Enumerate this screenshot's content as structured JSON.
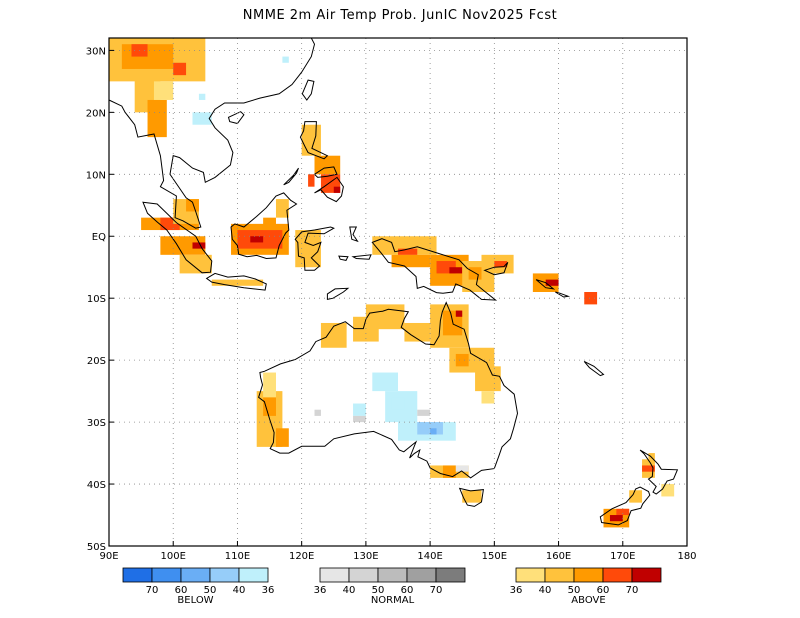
{
  "title": "NMME 2m Air Temp Prob. JunIC  Nov2025 Fcst",
  "map": {
    "lon_range": [
      90,
      180
    ],
    "lat_range": [
      -50,
      32
    ],
    "lon_ticks": [
      "90E",
      "100E",
      "110E",
      "120E",
      "130E",
      "140E",
      "150E",
      "160E",
      "170E",
      "180"
    ],
    "lat_ticks": [
      "30N",
      "20N",
      "10N",
      "EQ",
      "10S",
      "20S",
      "30S",
      "40S",
      "50S"
    ],
    "gridlines": "dotted"
  },
  "legend": {
    "below": {
      "title": "BELOW",
      "colors": [
        "#1f6fe6",
        "#3f8ff0",
        "#6aaef5",
        "#96cdf9",
        "#bff0fb"
      ],
      "labels": [
        "70",
        "60",
        "50",
        "40",
        "36"
      ]
    },
    "normal": {
      "title": "NORMAL",
      "colors": [
        "#e6e6e6",
        "#d4d4d4",
        "#bcbcbc",
        "#a0a0a0",
        "#7c7c7c"
      ],
      "labels": [
        "36",
        "40",
        "50",
        "60",
        "70"
      ]
    },
    "above": {
      "title": "ABOVE",
      "colors": [
        "#ffe07a",
        "#ffc23c",
        "#ff9a00",
        "#ff4a0a",
        "#c00000"
      ],
      "labels": [
        "36",
        "40",
        "50",
        "60",
        "70"
      ]
    }
  },
  "probability_cells": [
    {
      "region": "Myanmar / Indochina north",
      "category": "above",
      "level": "40-50"
    },
    {
      "region": "Sumatra",
      "category": "above",
      "level": "50-60"
    },
    {
      "region": "Borneo",
      "category": "above",
      "level": "60-70"
    },
    {
      "region": "New Guinea",
      "category": "above",
      "level": "60-70"
    },
    {
      "region": "Philippines",
      "category": "above",
      "level": "60-70"
    },
    {
      "region": "Solomon Islands",
      "category": "above",
      "level": "60-70"
    },
    {
      "region": "Western Australia coast",
      "category": "above",
      "level": "40-50"
    },
    {
      "region": "Northern Australia",
      "category": "above",
      "level": "40-50"
    },
    {
      "region": "Queensland",
      "category": "above",
      "level": "40-50"
    },
    {
      "region": "Central Australia",
      "category": "below",
      "level": "36-40"
    },
    {
      "region": "South Australia",
      "category": "below",
      "level": "40-50"
    },
    {
      "region": "Tasmania",
      "category": "above",
      "level": "40-50"
    },
    {
      "region": "New Zealand",
      "category": "above",
      "level": "60-70"
    },
    {
      "region": "Laos",
      "category": "below",
      "level": "36-40"
    }
  ]
}
